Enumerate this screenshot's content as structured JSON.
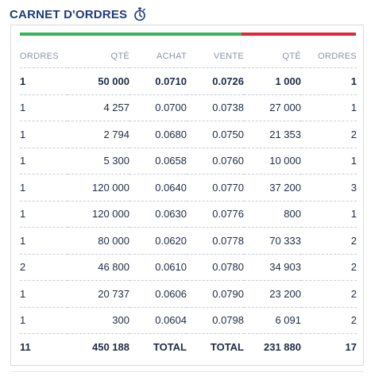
{
  "widget": {
    "title": "CARNET D'ORDRES",
    "icon": "stopwatch-icon"
  },
  "depth_bar": {
    "buy_color": "#34b557",
    "sell_color": "#e0263a",
    "buy_fraction": 0.66
  },
  "columns": [
    "ORDRES",
    "QTÉ",
    "ACHAT",
    "VENTE",
    "QTÉ",
    "ORDRES"
  ],
  "rows": [
    [
      "1",
      "50 000",
      "0.0710",
      "0.0726",
      "1 000",
      "1"
    ],
    [
      "1",
      "4 257",
      "0.0700",
      "0.0738",
      "27 000",
      "1"
    ],
    [
      "1",
      "2 794",
      "0.0680",
      "0.0750",
      "21 353",
      "2"
    ],
    [
      "1",
      "5 300",
      "0.0658",
      "0.0760",
      "10 000",
      "1"
    ],
    [
      "1",
      "120 000",
      "0.0640",
      "0.0770",
      "37 200",
      "3"
    ],
    [
      "1",
      "120 000",
      "0.0630",
      "0.0776",
      "800",
      "1"
    ],
    [
      "1",
      "80 000",
      "0.0620",
      "0.0778",
      "70 333",
      "2"
    ],
    [
      "2",
      "46 800",
      "0.0610",
      "0.0780",
      "34 903",
      "2"
    ],
    [
      "1",
      "20 737",
      "0.0606",
      "0.0790",
      "23 200",
      "2"
    ],
    [
      "1",
      "300",
      "0.0604",
      "0.0798",
      "6 091",
      "2"
    ]
  ],
  "totals": [
    "11",
    "450 188",
    "TOTAL",
    "TOTAL",
    "231 880",
    "17"
  ]
}
